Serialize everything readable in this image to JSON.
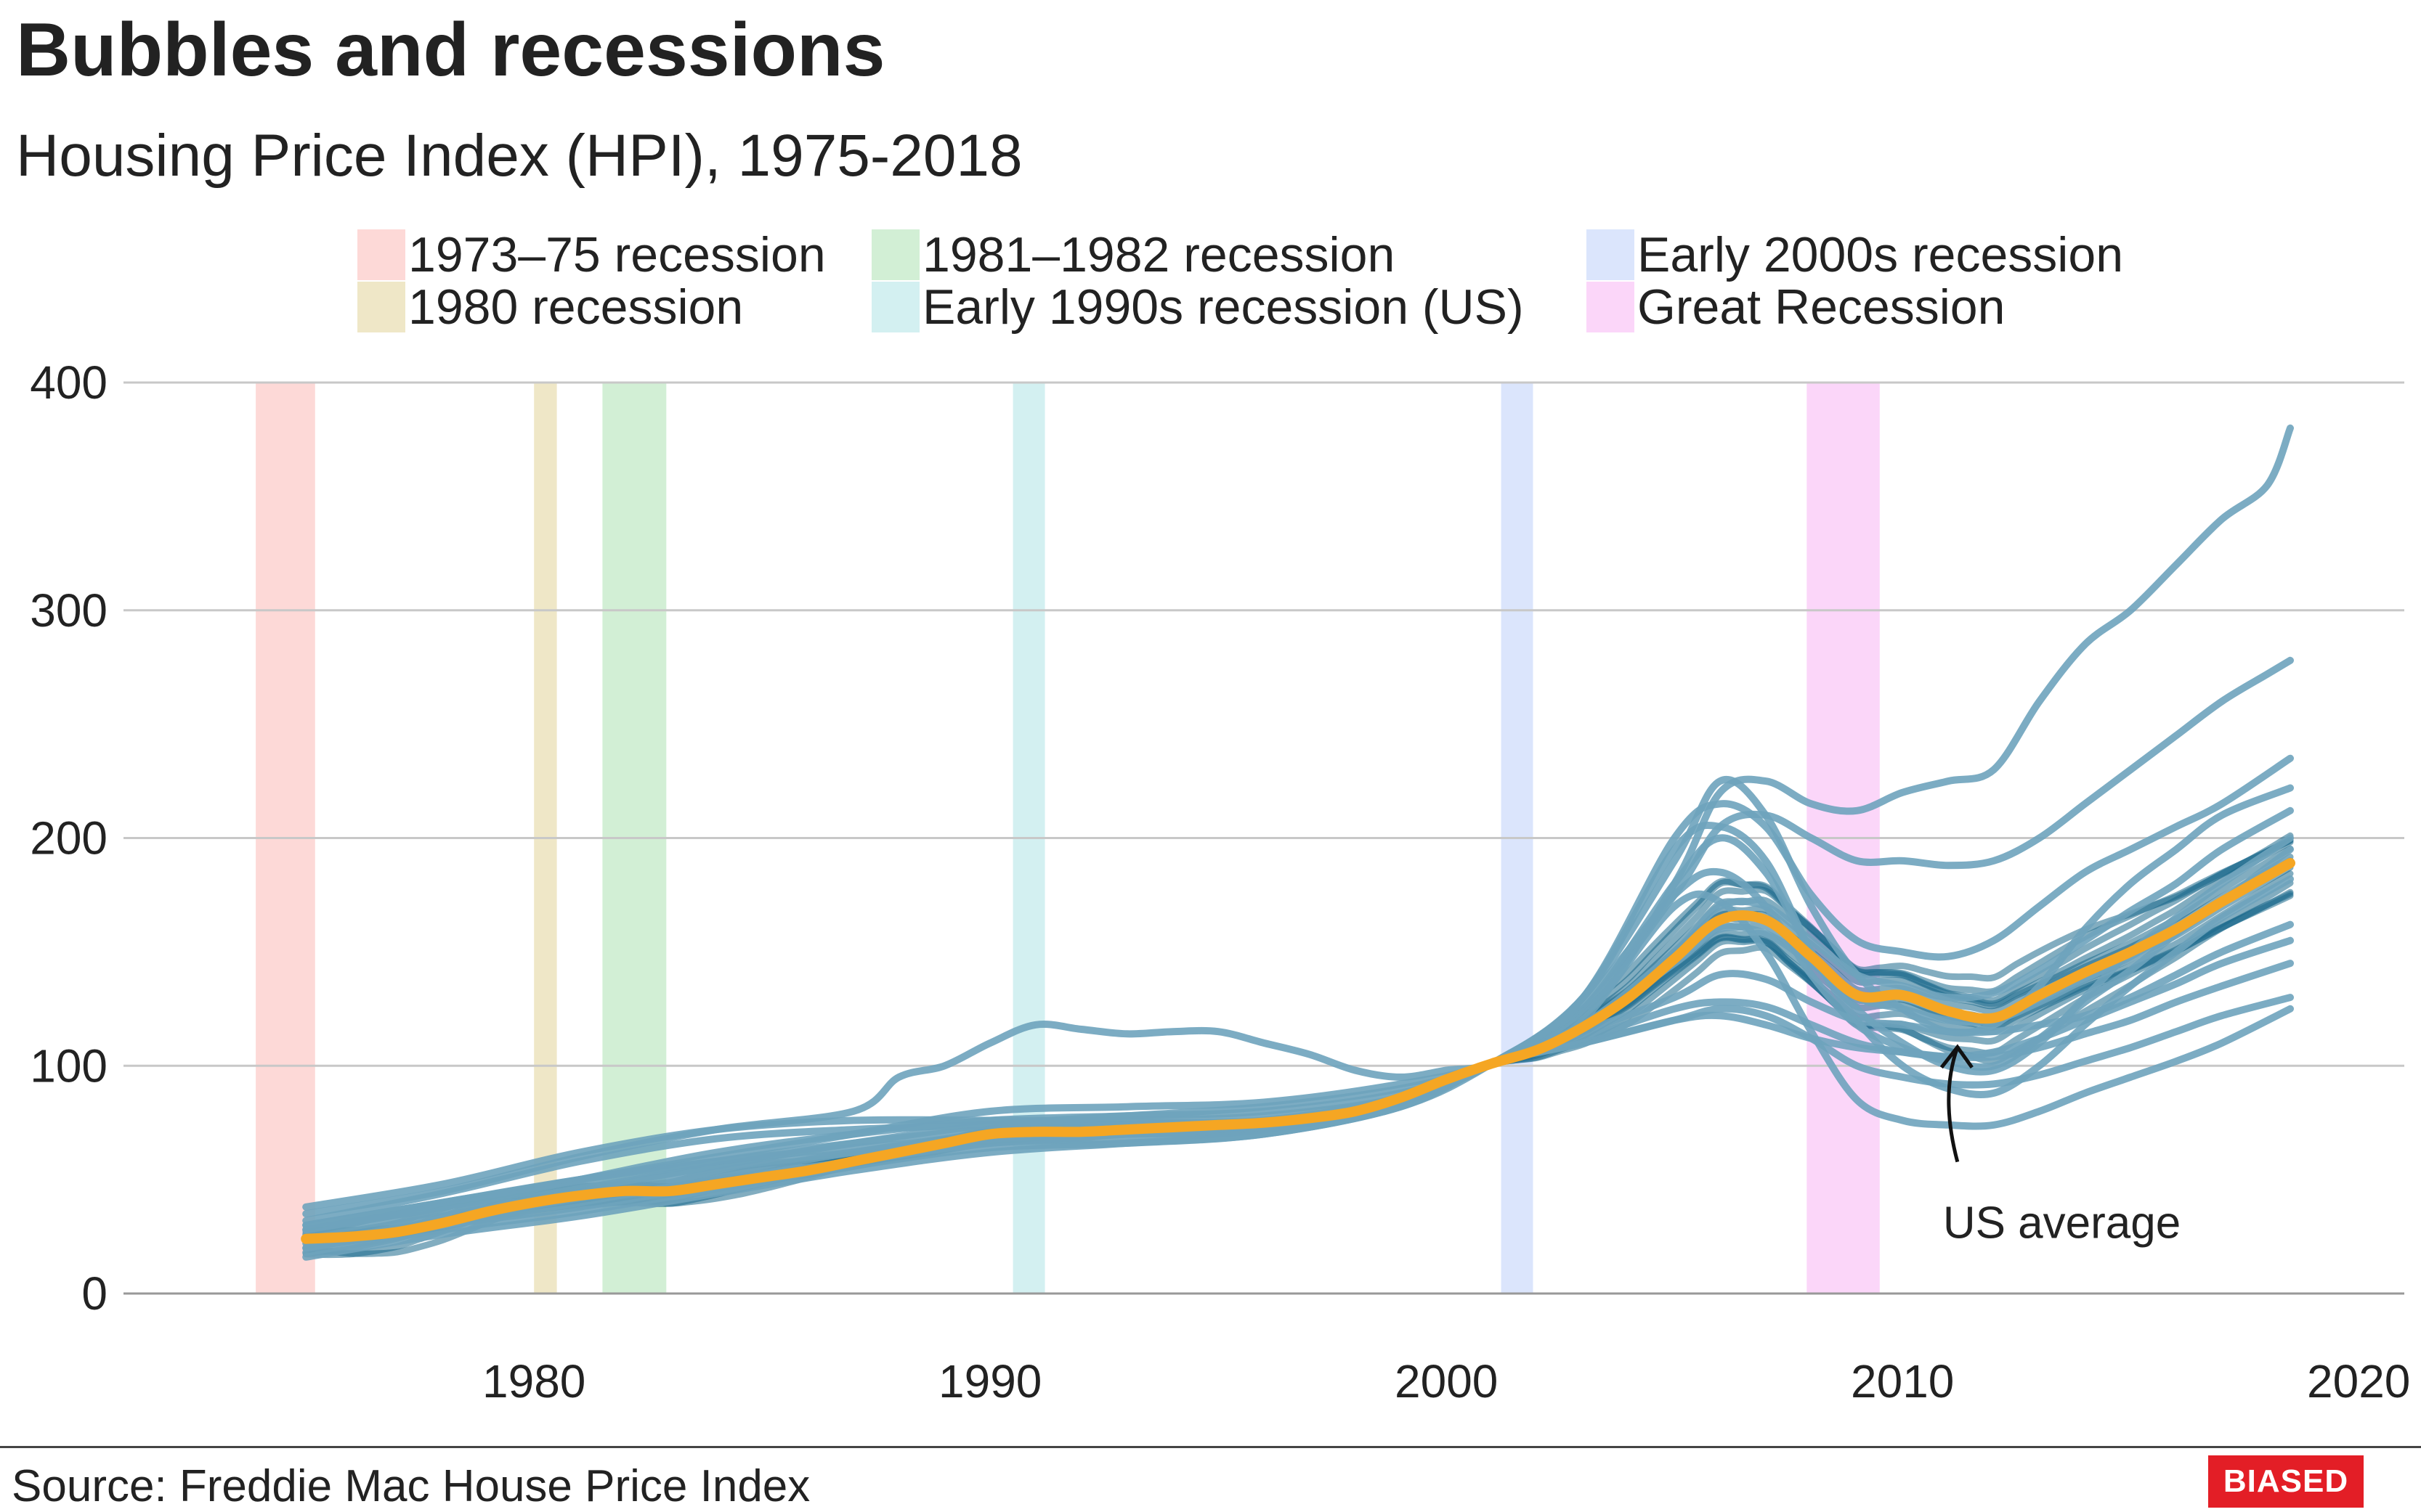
{
  "title": "Bubbles and recessions",
  "subtitle": "Housing Price Index (HPI), 1975-2018",
  "source": "Source: Freddie Mac House Price Index",
  "badge": "BIASED",
  "colors": {
    "state_line": "#6ea3bc",
    "state_core": "#1b6a8c",
    "us_average": "#f5a623",
    "gridline": "#c8c8c8",
    "axis": "#999999"
  },
  "chart_data": {
    "type": "line",
    "title": "Bubbles and recessions",
    "subtitle": "Housing Price Index (HPI), 1975-2018",
    "xlabel": "",
    "ylabel": "",
    "xlim": [
      1971,
      2021
    ],
    "ylim": [
      0,
      400
    ],
    "x_ticks": [
      1980,
      1990,
      2000,
      2010,
      2020
    ],
    "y_ticks": [
      0,
      100,
      200,
      300,
      400
    ],
    "grid": true,
    "legend_position": "top",
    "recessions": [
      {
        "name": "1973–75 recession",
        "start": 1973.9,
        "end": 1975.2,
        "color": "#fdd9d7"
      },
      {
        "name": "1980 recession",
        "start": 1980.0,
        "end": 1980.5,
        "color": "#efe7c7"
      },
      {
        "name": "1981–1982 recession",
        "start": 1981.5,
        "end": 1982.9,
        "color": "#d2efd5"
      },
      {
        "name": "Early 1990s recession (US)",
        "start": 1990.5,
        "end": 1991.2,
        "color": "#d3f0f1"
      },
      {
        "name": "Early 2000s recession",
        "start": 2001.2,
        "end": 2001.9,
        "color": "#dbe5fc"
      },
      {
        "name": "Great Recession",
        "start": 2007.9,
        "end": 2009.5,
        "color": "#fbd6f9"
      }
    ],
    "annotation": {
      "text": "US average",
      "x": 2011.3,
      "y": 112
    },
    "series": [
      {
        "role": "average",
        "x": [
          1975,
          1976,
          1977,
          1978,
          1979,
          1980,
          1981,
          1982,
          1983,
          1984,
          1985,
          1986,
          1987,
          1988,
          1989,
          1990,
          1991,
          1992,
          1993,
          1994,
          1995,
          1996,
          1997,
          1998,
          1999,
          2000,
          2001,
          2002,
          2003,
          2004,
          2005,
          2006,
          2007,
          2008,
          2009,
          2010,
          2011,
          2012,
          2013,
          2014,
          2015,
          2016,
          2017,
          2018.5
        ],
        "values": [
          24,
          25,
          27,
          31,
          36,
          40,
          43,
          45,
          45,
          48,
          51,
          54,
          58,
          62,
          66,
          70,
          71,
          71,
          72,
          73,
          74,
          75,
          77,
          80,
          86,
          94,
          101,
          107,
          117,
          130,
          147,
          164,
          164,
          148,
          131,
          131,
          124,
          121,
          131,
          141,
          150,
          160,
          172,
          189
        ]
      },
      {
        "role": "state",
        "x": [
          1975,
          1978,
          1981,
          1984,
          1987,
          1990,
          1993,
          1996,
          1999,
          2001,
          2003,
          2005,
          2006,
          2007,
          2008,
          2009,
          2010,
          2011,
          2012,
          2013,
          2014,
          2015,
          2016,
          2017,
          2018,
          2018.5
        ],
        "values": [
          30,
          40,
          50,
          60,
          70,
          80,
          82,
          84,
          92,
          101,
          120,
          180,
          220,
          225,
          215,
          212,
          220,
          225,
          230,
          260,
          285,
          300,
          320,
          340,
          355,
          380
        ]
      },
      {
        "role": "state",
        "x": [
          1975,
          1978,
          1981,
          1984,
          1987,
          1990,
          1993,
          1996,
          1999,
          2001,
          2003,
          2005,
          2006,
          2007,
          2008,
          2009,
          2010,
          2011,
          2012,
          2013,
          2014,
          2015,
          2016,
          2017,
          2018,
          2018.5
        ],
        "values": [
          26,
          36,
          46,
          56,
          66,
          74,
          78,
          82,
          90,
          101,
          125,
          175,
          205,
          210,
          200,
          190,
          190,
          188,
          190,
          200,
          215,
          230,
          245,
          260,
          272,
          278
        ]
      },
      {
        "role": "state",
        "x": [
          1975,
          1978,
          1981,
          1984,
          1987,
          1988,
          1989,
          1990,
          1991,
          1992,
          1993,
          1994,
          1995,
          1996,
          1997,
          1998,
          1999,
          2000,
          2001,
          2003,
          2005,
          2006,
          2007,
          2008,
          2009,
          2010,
          2011,
          2012,
          2013,
          2014,
          2015,
          2016,
          2017,
          2018.5
        ],
        "values": [
          35,
          45,
          60,
          72,
          80,
          95,
          100,
          110,
          118,
          116,
          114,
          115,
          115,
          110,
          105,
          98,
          95,
          98,
          101,
          118,
          150,
          170,
          170,
          155,
          140,
          135,
          130,
          132,
          142,
          155,
          168,
          180,
          195,
          212
        ]
      },
      {
        "role": "state",
        "x": [
          1975,
          1978,
          1981,
          1984,
          1987,
          1990,
          1993,
          1996,
          1999,
          2001,
          2003,
          2005,
          2006,
          2007,
          2008,
          2009,
          2010,
          2011,
          2012,
          2013,
          2014,
          2015,
          2016,
          2017,
          2018.5
        ],
        "values": [
          28,
          38,
          50,
          62,
          70,
          76,
          78,
          80,
          88,
          101,
          130,
          200,
          215,
          205,
          175,
          155,
          150,
          148,
          155,
          170,
          185,
          195,
          205,
          215,
          235
        ]
      },
      {
        "role": "state",
        "x": [
          1975,
          1978,
          1981,
          1984,
          1987,
          1990,
          1993,
          1996,
          1999,
          2001,
          2003,
          2005,
          2006,
          2007,
          2008,
          2009,
          2010,
          2011,
          2012,
          2013,
          2014,
          2015,
          2016,
          2017,
          2018.5
        ],
        "values": [
          22,
          32,
          42,
          52,
          62,
          70,
          72,
          74,
          85,
          101,
          130,
          190,
          225,
          210,
          170,
          140,
          125,
          115,
          118,
          135,
          160,
          180,
          195,
          210,
          222
        ]
      },
      {
        "role": "state",
        "x": [
          1975,
          1978,
          1981,
          1984,
          1987,
          1990,
          1993,
          1996,
          1999,
          2001,
          2003,
          2005,
          2006,
          2007,
          2008,
          2009,
          2010,
          2011,
          2012,
          2013,
          2014,
          2015,
          2016,
          2017,
          2018.5
        ],
        "values": [
          20,
          30,
          38,
          48,
          58,
          66,
          68,
          72,
          84,
          101,
          125,
          180,
          200,
          185,
          150,
          125,
          110,
          100,
          98,
          110,
          130,
          150,
          165,
          180,
          200
        ]
      },
      {
        "role": "state",
        "x": [
          1975,
          1978,
          1981,
          1984,
          1987,
          1990,
          1993,
          1996,
          1999,
          2001,
          2003,
          2005,
          2006,
          2007,
          2008,
          2009,
          2010,
          2011,
          2012,
          2013,
          2014,
          2015,
          2016,
          2017,
          2018.5
        ],
        "values": [
          18,
          28,
          36,
          46,
          56,
          64,
          66,
          70,
          82,
          101,
          130,
          195,
          205,
          190,
          150,
          120,
          100,
          90,
          88,
          100,
          118,
          135,
          150,
          165,
          182
        ]
      },
      {
        "role": "state",
        "x": [
          1975,
          1978,
          1981,
          1984,
          1987,
          1990,
          1993,
          1996,
          1999,
          2001,
          2003,
          2005,
          2006,
          2007,
          2008,
          2009,
          2010,
          2011,
          2012,
          2013,
          2014,
          2015,
          2016,
          2017,
          2018.5
        ],
        "values": [
          32,
          44,
          58,
          68,
          72,
          74,
          75,
          76,
          84,
          101,
          115,
          130,
          140,
          138,
          128,
          120,
          118,
          115,
          115,
          118,
          122,
          130,
          140,
          150,
          162
        ]
      },
      {
        "role": "state",
        "x": [
          1975,
          1978,
          1981,
          1984,
          1987,
          1990,
          1993,
          1996,
          1999,
          2001,
          2003,
          2005,
          2006,
          2007,
          2008,
          2009,
          2010,
          2011,
          2012,
          2013,
          2014,
          2015,
          2016,
          2017,
          2018.5
        ],
        "values": [
          38,
          48,
          62,
          72,
          76,
          76,
          76,
          78,
          86,
          101,
          110,
          120,
          125,
          122,
          112,
          100,
          95,
          92,
          92,
          96,
          102,
          108,
          115,
          122,
          130
        ]
      },
      {
        "role": "state",
        "x": [
          1975,
          1978,
          1981,
          1984,
          1987,
          1990,
          1993,
          1996,
          1999,
          2001,
          2003,
          2005,
          2006,
          2007,
          2008,
          2009,
          2010,
          2011,
          2012,
          2013,
          2014,
          2015,
          2016,
          2017,
          2018.5
        ],
        "values": [
          24,
          34,
          45,
          55,
          62,
          68,
          70,
          72,
          84,
          101,
          122,
          170,
          172,
          150,
          115,
          85,
          76,
          74,
          74,
          80,
          88,
          95,
          102,
          110,
          125
        ]
      },
      {
        "role": "state",
        "x": [
          1975,
          1978,
          1981,
          1984,
          1987,
          1990,
          1993,
          1996,
          1999,
          2001,
          2003,
          2005,
          2006,
          2007,
          2008,
          2009,
          2010,
          2011,
          2012,
          2013,
          2014,
          2015,
          2016,
          2017,
          2018.5
        ],
        "values": [
          30,
          40,
          50,
          58,
          64,
          68,
          70,
          72,
          84,
          101,
          110,
          120,
          122,
          118,
          112,
          108,
          106,
          104,
          104,
          108,
          114,
          120,
          128,
          135,
          145
        ]
      },
      {
        "role": "state",
        "x": [
          1975,
          1978,
          1981,
          1984,
          1987,
          1990,
          1993,
          1996,
          1999,
          2001,
          2003,
          2005,
          2006,
          2007,
          2008,
          2009,
          2010,
          2011,
          2012,
          2013,
          2014,
          2015,
          2016,
          2017,
          2018.5
        ],
        "values": [
          16,
          26,
          34,
          44,
          54,
          62,
          66,
          70,
          82,
          101,
          118,
          145,
          160,
          158,
          145,
          130,
          125,
          120,
          120,
          128,
          138,
          148,
          160,
          172,
          190
        ]
      },
      {
        "role": "state",
        "x": [
          1975,
          1978,
          1981,
          1984,
          1987,
          1990,
          1993,
          1996,
          1999,
          2001,
          2003,
          2005,
          2006,
          2007,
          2008,
          2009,
          2010,
          2011,
          2012,
          2013,
          2014,
          2015,
          2016,
          2017,
          2018.5
        ],
        "values": [
          28,
          38,
          48,
          58,
          66,
          72,
          74,
          76,
          86,
          101,
          112,
          125,
          128,
          126,
          118,
          110,
          106,
          104,
          106,
          112,
          120,
          128,
          136,
          145,
          155
        ]
      },
      {
        "role": "state",
        "x": [
          1975,
          1978,
          1981,
          1984,
          1987,
          1990,
          1993,
          1996,
          1999,
          2001,
          2003,
          2005,
          2006,
          2007,
          2008,
          2009,
          2010,
          2011,
          2012,
          2013,
          2014,
          2015,
          2016,
          2017,
          2018.5
        ],
        "values": [
          20,
          30,
          40,
          50,
          58,
          66,
          70,
          74,
          86,
          101,
          128,
          175,
          185,
          170,
          140,
          118,
          108,
          102,
          100,
          112,
          128,
          142,
          158,
          172,
          195
        ]
      }
    ]
  },
  "x_tick_labels": [
    "1980",
    "1990",
    "2000",
    "2010",
    "2020"
  ],
  "y_tick_labels": [
    "0",
    "100",
    "200",
    "300",
    "400"
  ],
  "legend": [
    {
      "label": "1973–75 recession",
      "color": "#fdd9d7"
    },
    {
      "label": "1980 recession",
      "color": "#efe7c7"
    },
    {
      "label": "1981–1982 recession",
      "color": "#d2efd5"
    },
    {
      "label": "Early 1990s recession (US)",
      "color": "#d3f0f1"
    },
    {
      "label": "Early 2000s recession",
      "color": "#dbe5fc"
    },
    {
      "label": "Great Recession",
      "color": "#fbd6f9"
    }
  ]
}
